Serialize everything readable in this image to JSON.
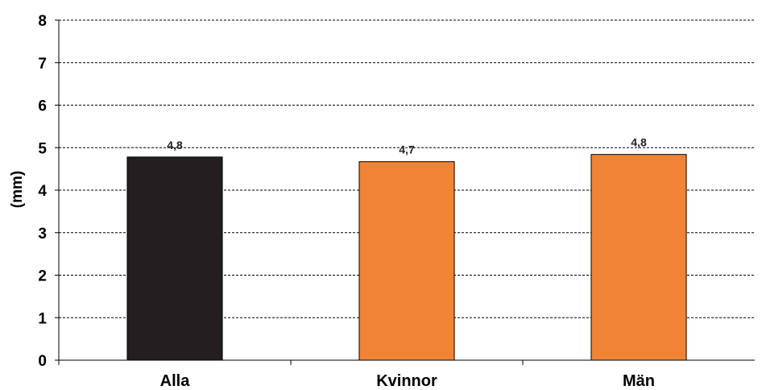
{
  "chart_data": {
    "type": "bar",
    "title": "",
    "xlabel": "",
    "ylabel": "(mm)",
    "ylim": [
      0,
      8
    ],
    "yticks": [
      "0",
      "1",
      "2",
      "3",
      "4",
      "5",
      "6",
      "7",
      "8"
    ],
    "grid": "horizontal dashed",
    "categories": [
      "Alla",
      "Kvinnor",
      "Män"
    ],
    "values": [
      4.78,
      4.67,
      4.84
    ],
    "data_labels": [
      "4,8",
      "4,7",
      "4,8"
    ],
    "colors": [
      "#231f20",
      "#f08434",
      "#f08434"
    ]
  }
}
